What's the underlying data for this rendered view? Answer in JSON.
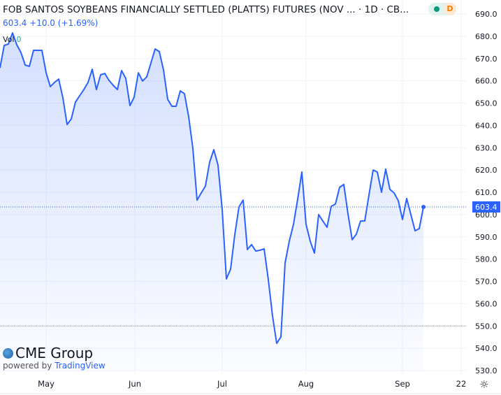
{
  "header": {
    "title": "FOB SANTOS SOYBEANS FINANCIALLY SETTLED (PLATTS) FUTURES (NOV ... · 1D · CB...",
    "quote": "603.4 +10.0 (+1.69%)",
    "vol_label": "Vol",
    "vol_value": "0",
    "status_letter": "D"
  },
  "branding": {
    "logo": "CME Group",
    "powered_by": "powered by",
    "tradingview": "TradingView"
  },
  "chart_data": {
    "type": "area",
    "ylim": [
      530,
      690
    ],
    "yticks": [
      "690.0",
      "680.0",
      "670.0",
      "660.0",
      "650.0",
      "640.0",
      "630.0",
      "620.0",
      "610.0",
      "600.0",
      "590.0",
      "580.0",
      "570.0",
      "560.0",
      "550.0",
      "540.0",
      "530.0"
    ],
    "xticks": [
      "May",
      "Jun",
      "Jul",
      "Aug",
      "Sep",
      "22"
    ],
    "last_price_label": "603.4",
    "last_price": 603.4,
    "reference_line": 550,
    "grid": true,
    "line_color": "#2962ff",
    "values": [
      665.8,
      675.9,
      676.5,
      681.5,
      676.2,
      672.7,
      667.1,
      666.5,
      673.7,
      673.7,
      673.7,
      663.6,
      657.4,
      659.3,
      660.8,
      652.4,
      640.4,
      642.9,
      650.5,
      653.3,
      656.1,
      659.3,
      665.2,
      656.1,
      662.7,
      663.3,
      660.2,
      658.0,
      656.1,
      664.6,
      661.1,
      648.9,
      652.7,
      663.6,
      659.9,
      661.8,
      668.0,
      674.3,
      673.1,
      664.9,
      651.7,
      648.6,
      648.6,
      655.5,
      654.2,
      643.9,
      629.8,
      606.5,
      609.7,
      612.8,
      623.5,
      629.1,
      622.2,
      602.2,
      571.1,
      575.5,
      590.9,
      603.4,
      606.5,
      584.3,
      586.5,
      583.6,
      584.0,
      584.6,
      570.8,
      554.5,
      542.2,
      545.1,
      578.3,
      588.0,
      595.6,
      606.9,
      619.1,
      595.6,
      588.0,
      582.7,
      600.0,
      597.1,
      594.3,
      603.7,
      604.7,
      612.2,
      613.5,
      600.3,
      588.7,
      591.2,
      597.1,
      597.1,
      608.7,
      620.0,
      619.1,
      610.0,
      620.4,
      611.3,
      609.7,
      606.2,
      597.8,
      607.2,
      600.0,
      592.7,
      593.7,
      603.4
    ]
  }
}
